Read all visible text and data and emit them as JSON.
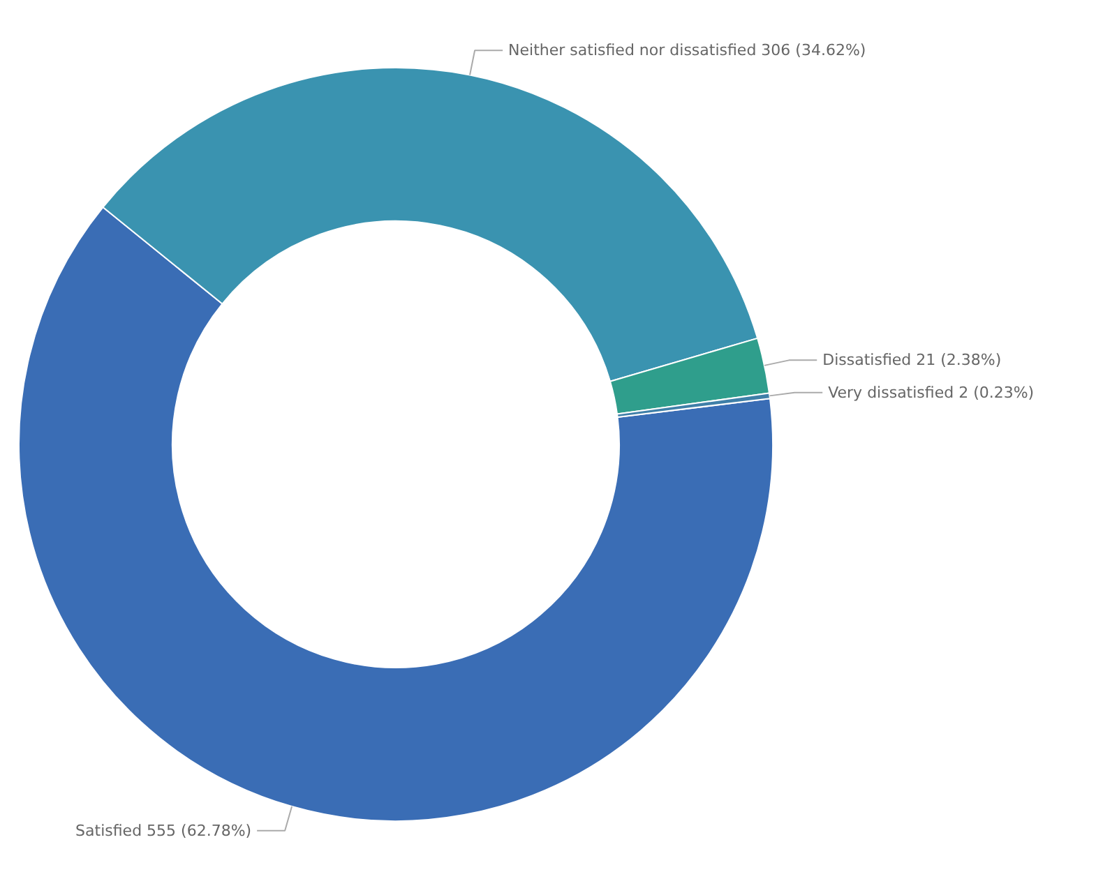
{
  "chart_data": {
    "type": "donut",
    "categories": [
      "Satisfied",
      "Neither satisfied nor dissatisfied",
      "Dissatisfied",
      "Very dissatisfied"
    ],
    "values": [
      555,
      306,
      21,
      2
    ],
    "value_labels": [
      "555 (62.78%)",
      "306 (34.62%)",
      "21 (2.38%)",
      "2 (0.23%)"
    ],
    "colors": [
      "#3a6db5",
      "#3a93b0",
      "#2f9e8c",
      "#3f7fa8"
    ],
    "legend": false
  }
}
